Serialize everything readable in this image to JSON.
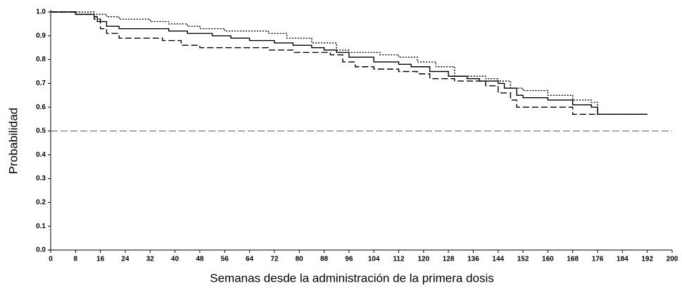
{
  "chart_data": {
    "type": "step",
    "xlabel": "Semanas desde la administración de la primera dosis",
    "ylabel": "Probabilidad",
    "xlim": [
      0,
      200
    ],
    "ylim": [
      0,
      1
    ],
    "xticks": [
      0,
      8,
      16,
      24,
      32,
      40,
      48,
      56,
      64,
      72,
      80,
      88,
      96,
      104,
      112,
      120,
      128,
      136,
      144,
      152,
      160,
      168,
      176,
      184,
      192,
      200
    ],
    "yticks": [
      {
        "value": 0,
        "label": "0.0"
      },
      0.1,
      0.2,
      0.3,
      0.4,
      0.5,
      0.6,
      0.7,
      0.8,
      0.9,
      {
        "value": 1,
        "label": "1.0"
      }
    ],
    "hlines": [
      {
        "value": 0.5,
        "color": "#555555",
        "dash": "10 4"
      }
    ],
    "series": [
      {
        "color": "#000000",
        "dash": "none",
        "x": [
          0,
          8,
          14,
          15,
          18,
          22,
          38,
          44,
          52,
          58,
          64,
          72,
          78,
          84,
          88,
          92,
          96,
          104,
          112,
          116,
          122,
          128,
          134,
          138,
          144,
          146,
          150,
          152,
          160,
          168,
          174,
          176,
          192
        ],
        "values": [
          1.0,
          0.99,
          0.98,
          0.96,
          0.94,
          0.93,
          0.92,
          0.91,
          0.9,
          0.89,
          0.88,
          0.87,
          0.86,
          0.85,
          0.84,
          0.83,
          0.81,
          0.79,
          0.78,
          0.77,
          0.75,
          0.73,
          0.72,
          0.71,
          0.7,
          0.68,
          0.65,
          0.64,
          0.63,
          0.61,
          0.6,
          0.57,
          0.57
        ]
      },
      {
        "color": "#000000",
        "dash": "2 2",
        "x": [
          0,
          14,
          18,
          22,
          32,
          38,
          44,
          48,
          56,
          70,
          76,
          84,
          92,
          96,
          106,
          112,
          118,
          124,
          130,
          140,
          144,
          148,
          152,
          160,
          168,
          174,
          176,
          192
        ],
        "values": [
          1.0,
          0.99,
          0.98,
          0.97,
          0.96,
          0.95,
          0.94,
          0.93,
          0.92,
          0.91,
          0.89,
          0.87,
          0.84,
          0.83,
          0.82,
          0.81,
          0.79,
          0.77,
          0.73,
          0.72,
          0.71,
          0.68,
          0.67,
          0.65,
          0.63,
          0.62,
          0.57,
          0.57
        ]
      },
      {
        "color": "#000000",
        "dash": "9 4",
        "x": [
          0,
          8,
          14,
          16,
          18,
          22,
          36,
          42,
          48,
          70,
          78,
          90,
          94,
          98,
          104,
          112,
          118,
          122,
          130,
          140,
          144,
          148,
          150,
          168,
          192
        ],
        "values": [
          1.0,
          0.99,
          0.97,
          0.93,
          0.91,
          0.89,
          0.88,
          0.86,
          0.85,
          0.84,
          0.83,
          0.82,
          0.79,
          0.77,
          0.76,
          0.75,
          0.74,
          0.72,
          0.71,
          0.69,
          0.66,
          0.63,
          0.6,
          0.57,
          0.57
        ]
      }
    ]
  }
}
